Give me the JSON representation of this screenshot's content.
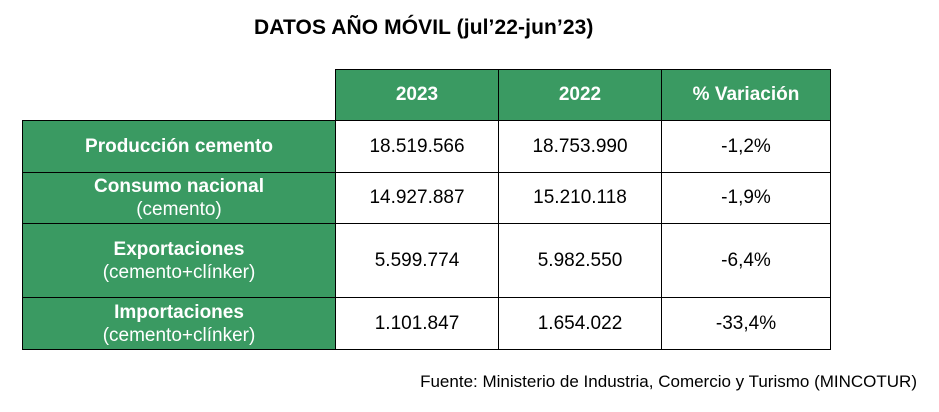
{
  "title": "DATOS AÑO MÓVIL (jul’22-jun’23)",
  "columns": [
    "2023",
    "2022",
    "% Variación"
  ],
  "rows": [
    {
      "label": "Producción cemento",
      "sublabel": "",
      "values": [
        "18.519.566",
        "18.753.990",
        "-1,2%"
      ]
    },
    {
      "label": "Consumo nacional",
      "sublabel": "(cemento)",
      "values": [
        "14.927.887",
        "15.210.118",
        "-1,9%"
      ]
    },
    {
      "label": "Exportaciones",
      "sublabel": "(cemento+clínker)",
      "values": [
        "5.599.774",
        "5.982.550",
        "-6,4%"
      ]
    },
    {
      "label": "Importaciones",
      "sublabel": "(cemento+clínker)",
      "values": [
        "1.101.847",
        "1.654.022",
        "-33,4%"
      ]
    }
  ],
  "source": "Fuente: Ministerio de Industria, Comercio y Turismo (MINCOTUR)",
  "colors": {
    "header_bg": "#3a9a62",
    "header_text": "#ffffff"
  },
  "chart_data": {
    "type": "table",
    "title": "DATOS AÑO MÓVIL (jul’22-jun’23)",
    "columns": [
      "2023",
      "2022",
      "% Variación"
    ],
    "rows": [
      {
        "name": "Producción cemento",
        "2023": 18519566,
        "2022": 18753990,
        "variation_pct": -1.2
      },
      {
        "name": "Consumo nacional (cemento)",
        "2023": 14927887,
        "2022": 15210118,
        "variation_pct": -1.9
      },
      {
        "name": "Exportaciones (cemento+clínker)",
        "2023": 5599774,
        "2022": 5982550,
        "variation_pct": -6.4
      },
      {
        "name": "Importaciones (cemento+clínker)",
        "2023": 1101847,
        "2022": 1654022,
        "variation_pct": -33.4
      }
    ]
  }
}
